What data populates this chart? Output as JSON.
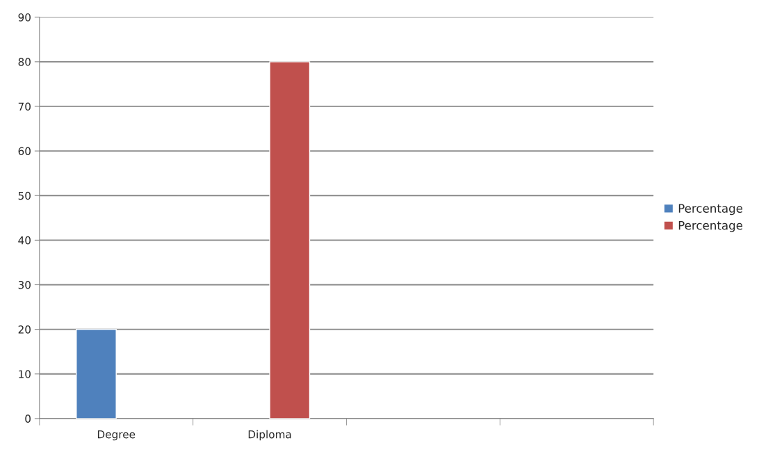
{
  "chart_data": {
    "type": "bar",
    "categories": [
      "Degree",
      "Diploma",
      null,
      null
    ],
    "series": [
      {
        "name": "Percentage",
        "color": "#4f81bd",
        "values": [
          20,
          null,
          null,
          null
        ]
      },
      {
        "name": "Percentage",
        "color": "#c0504d",
        "values": [
          null,
          80,
          null,
          null
        ]
      }
    ],
    "ylim": [
      0,
      90
    ],
    "yticks": [
      0,
      10,
      20,
      30,
      40,
      50,
      60,
      70,
      80,
      90
    ],
    "grid": "y",
    "legend": "right"
  }
}
